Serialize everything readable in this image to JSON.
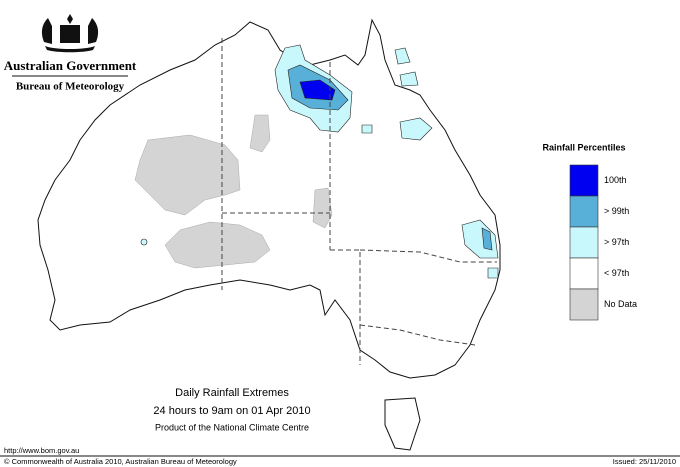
{
  "header": {
    "government": "Australian Government",
    "agency": "Bureau of Meteorology"
  },
  "legend": {
    "title": "Rainfall Percentiles",
    "items": [
      {
        "label": "100th",
        "color": "#0000f0"
      },
      {
        "label": "> 99th",
        "color": "#58b0d8"
      },
      {
        "label": "> 97th",
        "color": "#c8f8fc"
      },
      {
        "label": "< 97th",
        "color": "#ffffff"
      },
      {
        "label": "No Data",
        "color": "#d4d4d4"
      }
    ]
  },
  "caption": {
    "title": "Daily Rainfall Extremes",
    "period": "24 hours to 9am on 01 Apr 2010",
    "source": "Product of the National Climate Centre"
  },
  "footer": {
    "url": "http://www.bom.gov.au",
    "copyright": "© Commonwealth of Australia 2010, Australian Bureau of Meteorology",
    "issued": "Issued: 25/11/2010"
  }
}
